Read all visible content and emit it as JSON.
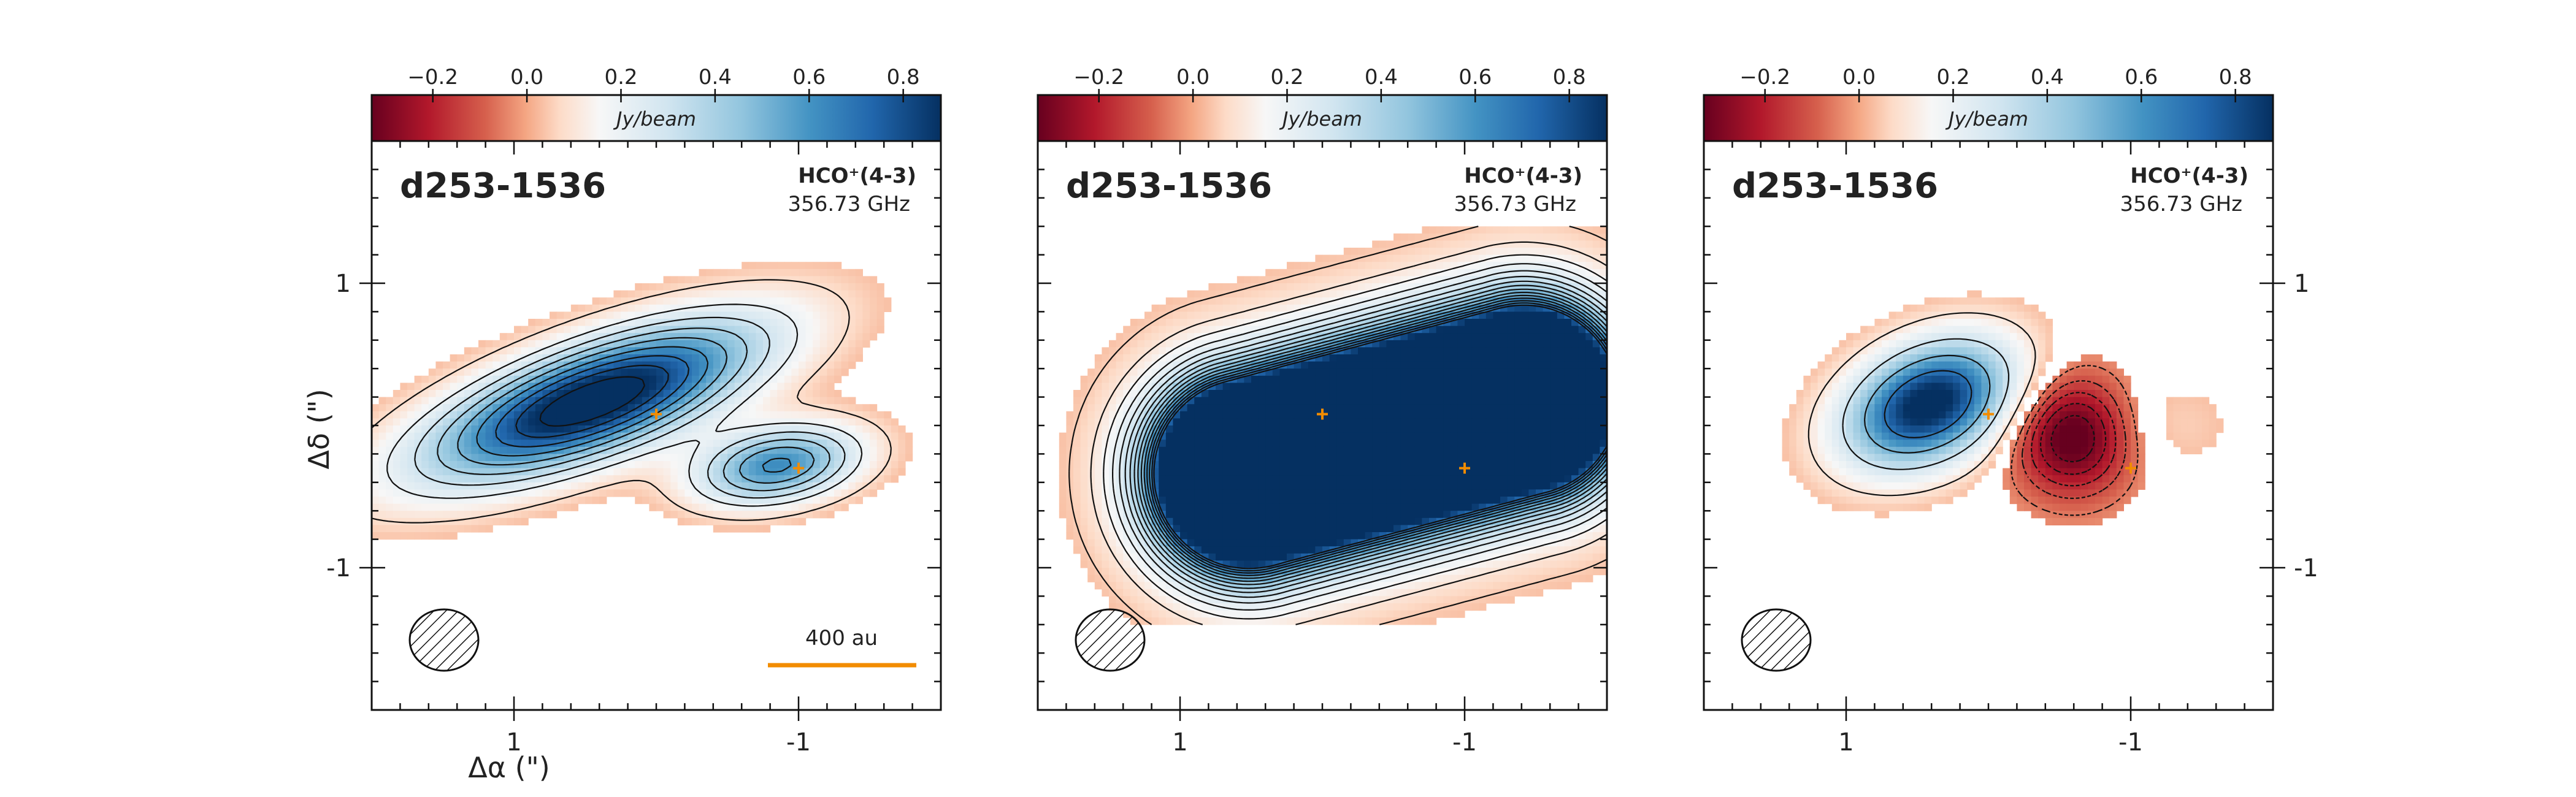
{
  "chart_data": [
    {
      "type": "heatmap",
      "role": "data",
      "source": "d253-1536",
      "line": "HCO⁺(4-3)",
      "frequency": "356.73 GHz",
      "colorbar": {
        "label": "Jy/beam",
        "ticks": [
          "−0.2",
          "0.0",
          "0.2",
          "0.4",
          "0.6",
          "0.8"
        ],
        "tick_values": [
          -0.2,
          0.0,
          0.2,
          0.4,
          0.6,
          0.8
        ],
        "range": [
          -0.33,
          0.88
        ],
        "colormap": "RdBu"
      },
      "x_ticks": [
        "1",
        "-1"
      ],
      "x_tick_values": [
        1,
        -1
      ],
      "y_ticks": [
        "1",
        "-1"
      ],
      "y_tick_values": [
        1,
        -1
      ],
      "xlim": [
        2.0,
        -2.0
      ],
      "ylim": [
        -2.0,
        2.0
      ],
      "xlabel": "Δα (\")",
      "ylabel": "Δδ (\")",
      "stars": [
        {
          "x": 0.0,
          "y": 0.08
        },
        {
          "x": -1.0,
          "y": -0.3
        }
      ],
      "scalebar": {
        "label": "400 au"
      },
      "beam": "hatched-ellipse",
      "emission_model": {
        "components": [
          {
            "x": 0.45,
            "y": 0.17,
            "a": 0.85,
            "b": 0.26,
            "pa_deg": -20,
            "peak": 1.0
          },
          {
            "x": -0.85,
            "y": -0.28,
            "a": 0.4,
            "b": 0.18,
            "pa_deg": -10,
            "peak": 0.62
          }
        ],
        "negative": [],
        "contour_levels": [
          0.08,
          0.2,
          0.3,
          0.4,
          0.5,
          0.6,
          0.7,
          0.8,
          0.9
        ],
        "neg_contour_levels": []
      }
    },
    {
      "type": "heatmap",
      "role": "model",
      "source": "d253-1536",
      "line": "HCO⁺(4-3)",
      "frequency": "356.73 GHz",
      "colorbar": {
        "label": "Jy/beam",
        "ticks": [
          "−0.2",
          "0.0",
          "0.2",
          "0.4",
          "0.6",
          "0.8"
        ],
        "tick_values": [
          -0.2,
          0.0,
          0.2,
          0.4,
          0.6,
          0.8
        ],
        "range": [
          -0.33,
          0.88
        ],
        "colormap": "RdBu"
      },
      "x_ticks": [
        "1",
        "-1"
      ],
      "x_tick_values": [
        1,
        -1
      ],
      "y_ticks": [],
      "y_tick_values": [
        1,
        -1
      ],
      "xlim": [
        2.0,
        -2.0
      ],
      "ylim": [
        -2.0,
        2.0
      ],
      "stars": [
        {
          "x": 0.0,
          "y": 0.08
        },
        {
          "x": -1.0,
          "y": -0.3
        }
      ],
      "beam": "hatched-ellipse",
      "emission_model": {
        "capsule": {
          "x": -0.45,
          "y": -0.08,
          "half_length": 1.0,
          "radius": 0.5,
          "pa_deg": -15,
          "peak": 1.6,
          "falloff": 0.22
        },
        "contour_levels": [
          0.05,
          0.1,
          0.15,
          0.2,
          0.25,
          0.3,
          0.35,
          0.4,
          0.45,
          0.5,
          0.55,
          0.6,
          0.65,
          0.7,
          0.75
        ],
        "neg_contour_levels": []
      }
    },
    {
      "type": "heatmap",
      "role": "residual",
      "source": "d253-1536",
      "line": "HCO⁺(4-3)",
      "frequency": "356.73 GHz",
      "colorbar": {
        "label": "Jy/beam",
        "ticks": [
          "−0.2",
          "0.0",
          "0.2",
          "0.4",
          "0.6",
          "0.8"
        ],
        "tick_values": [
          -0.2,
          0.0,
          0.2,
          0.4,
          0.6,
          0.8
        ],
        "range": [
          -0.33,
          0.88
        ],
        "colormap": "RdBu"
      },
      "x_ticks": [
        "1",
        "-1"
      ],
      "x_tick_values": [
        1,
        -1
      ],
      "y_ticks": [
        "1",
        "-1"
      ],
      "y_tick_values": [
        1,
        -1
      ],
      "xlim": [
        2.0,
        -2.0
      ],
      "ylim": [
        -2.0,
        2.0
      ],
      "stars": [
        {
          "x": 0.0,
          "y": 0.08
        },
        {
          "x": -1.0,
          "y": -0.3
        }
      ],
      "beam": "hatched-ellipse",
      "emission_model": {
        "components": [
          {
            "x": 0.42,
            "y": 0.15,
            "a": 0.42,
            "b": 0.27,
            "pa_deg": -25,
            "peak": 0.95
          }
        ],
        "negative": [
          {
            "x": -0.6,
            "y": -0.07,
            "a": 0.3,
            "b": 0.29,
            "pa_deg": 0,
            "peak": -0.4
          }
        ],
        "halo": [
          {
            "x": -1.1,
            "y": 0.0,
            "a": 0.42,
            "b": 0.25,
            "pa_deg": 0,
            "peak": 0.08
          }
        ],
        "contour_levels": [
          0.1,
          0.3,
          0.5,
          0.7
        ],
        "neg_contour_levels": [
          -0.06,
          -0.12,
          -0.18,
          -0.24,
          -0.3
        ]
      }
    }
  ]
}
